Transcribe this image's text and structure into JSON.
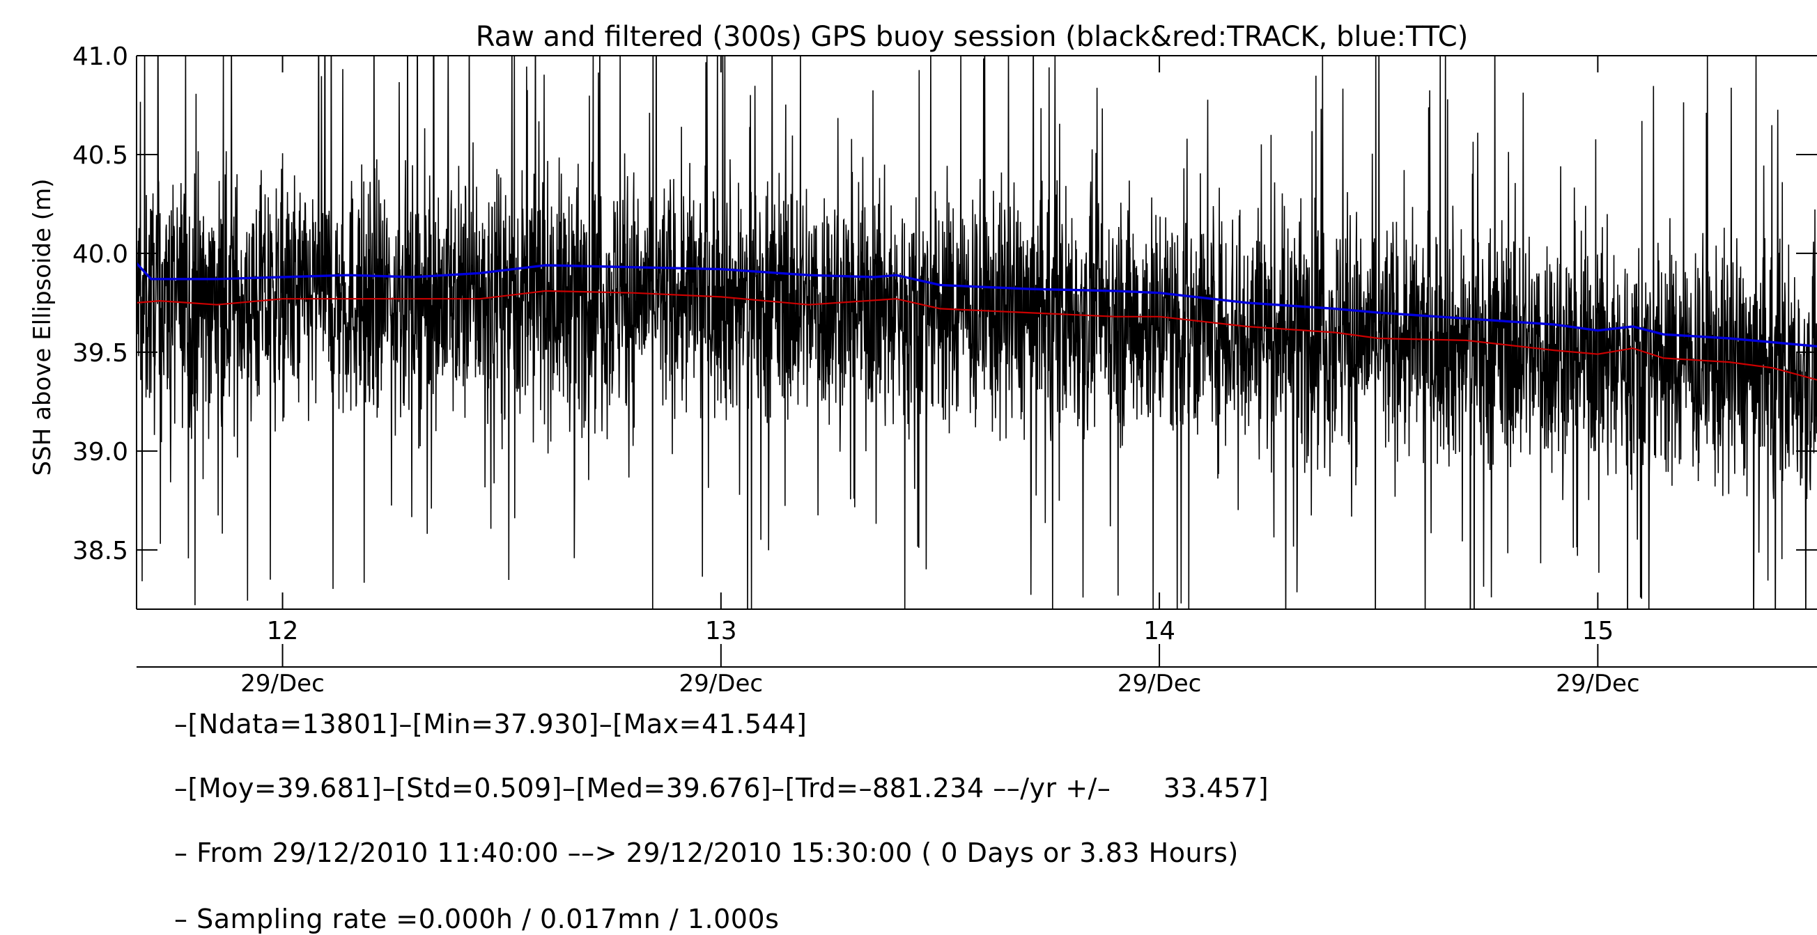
{
  "chart_data": {
    "type": "line",
    "title": "Raw and filtered (300s) GPS buoy session (black&red:TRACK, blue:TTC)",
    "ylabel": "SSH above Ellipsoide (m)",
    "xlabel": "",
    "ylim": [
      38.2,
      41.0
    ],
    "xlim": [
      11.667,
      15.5
    ],
    "y_ticks": [
      "38.5",
      "39.0",
      "39.5",
      "40.0",
      "40.5",
      "41.0"
    ],
    "y_tick_values": [
      38.5,
      39.0,
      39.5,
      40.0,
      40.5,
      41.0
    ],
    "x_ticks": [
      "12",
      "13",
      "14",
      "15"
    ],
    "x_tick_values": [
      12,
      13,
      14,
      15
    ],
    "x_date_labels": [
      "29/Dec",
      "29/Dec",
      "29/Dec",
      "29/Dec"
    ],
    "grid": false,
    "colors": {
      "raw": "#000000",
      "track": "#cc0000",
      "ttc": "#0000dd"
    },
    "series": [
      {
        "name": "raw TRACK",
        "style": "noise-band",
        "x": [
          11.667,
          12.0,
          12.5,
          13.0,
          13.5,
          14.0,
          14.5,
          15.0,
          15.5
        ],
        "center": [
          39.76,
          39.77,
          39.78,
          39.78,
          39.72,
          39.67,
          39.57,
          39.49,
          39.38
        ],
        "amplitude": 0.5
      },
      {
        "name": "filtered TRACK",
        "x": [
          11.667,
          11.72,
          11.85,
          12.0,
          12.15,
          12.3,
          12.45,
          12.6,
          12.8,
          13.0,
          13.2,
          13.4,
          13.5,
          13.7,
          13.9,
          14.0,
          14.2,
          14.4,
          14.5,
          14.7,
          14.9,
          15.0,
          15.08,
          15.15,
          15.3,
          15.4,
          15.5
        ],
        "y": [
          39.75,
          39.76,
          39.74,
          39.77,
          39.77,
          39.77,
          39.77,
          39.81,
          39.8,
          39.78,
          39.74,
          39.77,
          39.72,
          39.7,
          39.68,
          39.68,
          39.63,
          39.6,
          39.57,
          39.56,
          39.51,
          39.49,
          39.52,
          39.47,
          39.45,
          39.42,
          39.36
        ]
      },
      {
        "name": "filtered TTC",
        "x": [
          11.667,
          11.7,
          11.85,
          12.0,
          12.15,
          12.3,
          12.45,
          12.6,
          12.8,
          13.0,
          13.2,
          13.35,
          13.4,
          13.5,
          13.7,
          13.9,
          14.0,
          14.2,
          14.4,
          14.5,
          14.7,
          14.9,
          15.0,
          15.08,
          15.15,
          15.3,
          15.5
        ],
        "y": [
          39.95,
          39.87,
          39.87,
          39.88,
          39.89,
          39.88,
          39.9,
          39.94,
          39.93,
          39.92,
          39.89,
          39.88,
          39.89,
          39.84,
          39.82,
          39.81,
          39.8,
          39.75,
          39.72,
          39.7,
          39.67,
          39.64,
          39.61,
          39.63,
          39.59,
          39.57,
          39.53
        ]
      }
    ]
  },
  "stats": {
    "line1": "–[Ndata=13801]–[Min=37.930]–[Max=41.544]",
    "line2": "–[Moy=39.681]–[Std=0.509]–[Med=39.676]–[Trd=–881.234 ––/yr +/–      33.457]",
    "line3": "– From 29/12/2010 11:40:00 ––> 29/12/2010 15:30:00 ( 0 Days or 3.83 Hours)",
    "line4": "– Sampling rate =0.000h / 0.017mn / 1.000s"
  }
}
